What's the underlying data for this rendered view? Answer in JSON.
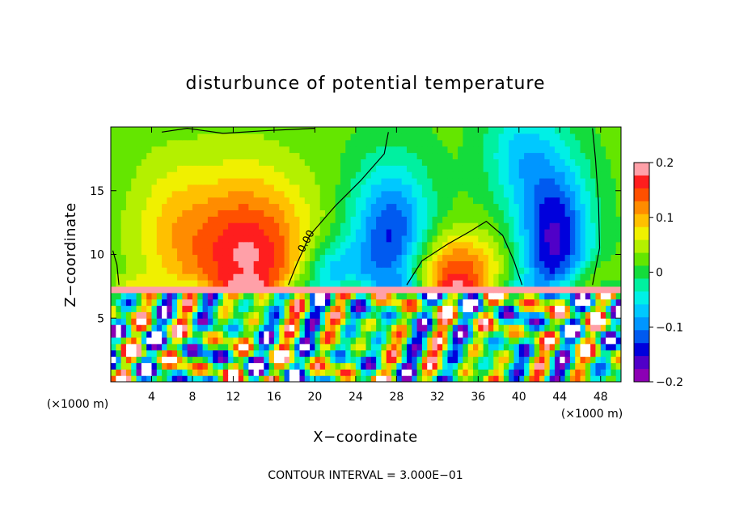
{
  "chart_data": {
    "type": "heatmap",
    "title": "disturbunce of potential temperature",
    "xlabel": "X−coordinate",
    "ylabel": "Z−coordinate",
    "x_unit": "(×1000 m)",
    "z_unit": "(×1000 m)",
    "xlim": [
      0,
      50
    ],
    "zlim": [
      0,
      20
    ],
    "x_ticks": [
      4,
      8,
      12,
      16,
      20,
      24,
      28,
      32,
      36,
      40,
      44,
      48
    ],
    "z_ticks": [
      5,
      10,
      15
    ],
    "colorbar": {
      "range": [
        -0.2,
        0.2
      ],
      "ticks": [
        0.2,
        0.1,
        0,
        -0.1,
        -0.2
      ],
      "tick_labels": [
        "0.2",
        "0.1",
        "0",
        "−0.1",
        "−0.2"
      ],
      "levels": [
        {
          "value": 0.2,
          "color": "#ffa0a8"
        },
        {
          "value": 0.175,
          "color": "#ff1e1e"
        },
        {
          "value": 0.15,
          "color": "#ff5000"
        },
        {
          "value": 0.125,
          "color": "#ff8c00"
        },
        {
          "value": 0.1,
          "color": "#ffc000"
        },
        {
          "value": 0.075,
          "color": "#f0f000"
        },
        {
          "value": 0.05,
          "color": "#b4f000"
        },
        {
          "value": 0.025,
          "color": "#64e600"
        },
        {
          "value": 0.0,
          "color": "#14dc3c"
        },
        {
          "value": -0.025,
          "color": "#00f0a0"
        },
        {
          "value": -0.05,
          "color": "#00f0e6"
        },
        {
          "value": -0.075,
          "color": "#00c8ff"
        },
        {
          "value": -0.1,
          "color": "#0096ff"
        },
        {
          "value": -0.125,
          "color": "#005af0"
        },
        {
          "value": -0.15,
          "color": "#0000dc"
        },
        {
          "value": -0.175,
          "color": "#5000c8"
        },
        {
          "value": -0.2,
          "color": "#8c00b4"
        }
      ]
    },
    "contour_labels": [
      "0.00"
    ],
    "grid": false,
    "colorbar_placement": "right"
  },
  "footer": {
    "contour_interval": "CONTOUR INTERVAL = 3.000E−01"
  }
}
